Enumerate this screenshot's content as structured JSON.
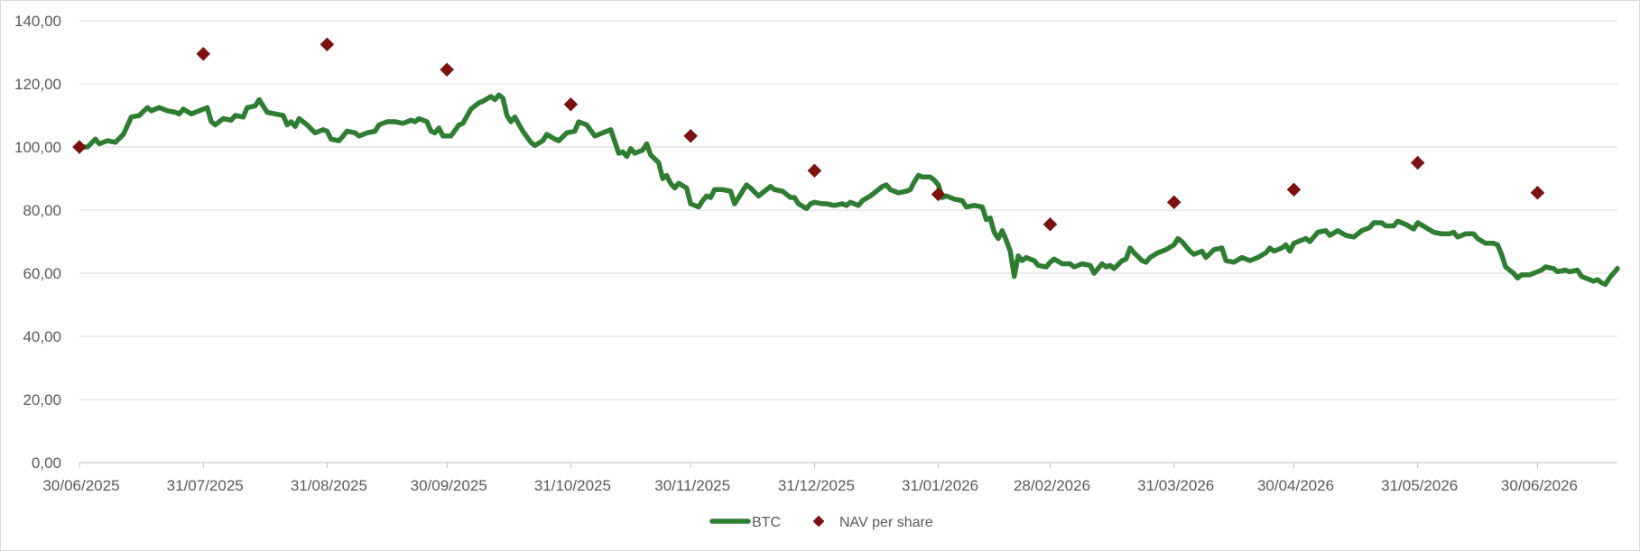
{
  "chart_data": {
    "type": "line",
    "title": "",
    "xlabel": "",
    "ylabel": "",
    "ylim": [
      0,
      140
    ],
    "y_ticks": [
      "0,00",
      "20,00",
      "40,00",
      "60,00",
      "80,00",
      "100,00",
      "120,00",
      "140,00"
    ],
    "y_tick_values": [
      0,
      20,
      40,
      60,
      80,
      100,
      120,
      140
    ],
    "x_range": [
      "2025-06-30",
      "2026-07-20"
    ],
    "x_ticks": [
      "30/06/2025",
      "31/07/2025",
      "31/08/2025",
      "30/09/2025",
      "31/10/2025",
      "30/11/2025",
      "31/12/2025",
      "31/01/2026",
      "28/02/2026",
      "31/03/2026",
      "30/04/2026",
      "31/05/2026",
      "30/06/2026"
    ],
    "x_tick_dates": [
      "2025-06-30",
      "2025-07-31",
      "2025-08-31",
      "2025-09-30",
      "2025-10-31",
      "2025-11-30",
      "2025-12-31",
      "2026-01-31",
      "2026-02-28",
      "2026-03-31",
      "2026-04-30",
      "2026-05-31",
      "2026-06-30"
    ],
    "grid": true,
    "legend_position": "bottom-center",
    "series": [
      {
        "name": "BTC",
        "kind": "line",
        "color": "#2e7d32",
        "points": [
          [
            "2025-06-30",
            100
          ],
          [
            "2025-07-02",
            100
          ],
          [
            "2025-07-04",
            102.5
          ],
          [
            "2025-07-05",
            101
          ],
          [
            "2025-07-07",
            102
          ],
          [
            "2025-07-09",
            101.5
          ],
          [
            "2025-07-11",
            104
          ],
          [
            "2025-07-13",
            109.5
          ],
          [
            "2025-07-15",
            110
          ],
          [
            "2025-07-17",
            112.5
          ],
          [
            "2025-07-18",
            111.5
          ],
          [
            "2025-07-20",
            112.5
          ],
          [
            "2025-07-22",
            111.5
          ],
          [
            "2025-07-24",
            111
          ],
          [
            "2025-07-25",
            110.5
          ],
          [
            "2025-07-26",
            112
          ],
          [
            "2025-07-28",
            110.5
          ],
          [
            "2025-07-30",
            111.5
          ],
          [
            "2025-08-01",
            112.5
          ],
          [
            "2025-08-02",
            108
          ],
          [
            "2025-08-03",
            107
          ],
          [
            "2025-08-05",
            109
          ],
          [
            "2025-08-07",
            108.5
          ],
          [
            "2025-08-08",
            110
          ],
          [
            "2025-08-10",
            109.5
          ],
          [
            "2025-08-11",
            112.5
          ],
          [
            "2025-08-13",
            113
          ],
          [
            "2025-08-14",
            115
          ],
          [
            "2025-08-16",
            111
          ],
          [
            "2025-08-18",
            110.5
          ],
          [
            "2025-08-20",
            110
          ],
          [
            "2025-08-21",
            107
          ],
          [
            "2025-08-22",
            108
          ],
          [
            "2025-08-23",
            106.5
          ],
          [
            "2025-08-24",
            109
          ],
          [
            "2025-08-26",
            107
          ],
          [
            "2025-08-28",
            104.5
          ],
          [
            "2025-08-30",
            105.5
          ],
          [
            "2025-08-31",
            105
          ],
          [
            "2025-09-01",
            102.5
          ],
          [
            "2025-09-03",
            102
          ],
          [
            "2025-09-05",
            105
          ],
          [
            "2025-09-07",
            104.5
          ],
          [
            "2025-09-08",
            103.5
          ],
          [
            "2025-09-10",
            104.5
          ],
          [
            "2025-09-12",
            105
          ],
          [
            "2025-09-13",
            107
          ],
          [
            "2025-09-15",
            108
          ],
          [
            "2025-09-17",
            108
          ],
          [
            "2025-09-19",
            107.5
          ],
          [
            "2025-09-21",
            108.5
          ],
          [
            "2025-09-22",
            108
          ],
          [
            "2025-09-23",
            109
          ],
          [
            "2025-09-25",
            108
          ],
          [
            "2025-09-26",
            105
          ],
          [
            "2025-09-27",
            104.5
          ],
          [
            "2025-09-28",
            106
          ],
          [
            "2025-09-29",
            103.5
          ],
          [
            "2025-10-01",
            103.5
          ],
          [
            "2025-10-03",
            107
          ],
          [
            "2025-10-04",
            107.5
          ],
          [
            "2025-10-06",
            112
          ],
          [
            "2025-10-08",
            114
          ],
          [
            "2025-10-09",
            114.5
          ],
          [
            "2025-10-11",
            116
          ],
          [
            "2025-10-12",
            115
          ],
          [
            "2025-10-13",
            116.5
          ],
          [
            "2025-10-14",
            115.5
          ],
          [
            "2025-10-15",
            110
          ],
          [
            "2025-10-16",
            108
          ],
          [
            "2025-10-17",
            109.5
          ],
          [
            "2025-10-19",
            105
          ],
          [
            "2025-10-21",
            101.5
          ],
          [
            "2025-10-22",
            100.5
          ],
          [
            "2025-10-24",
            102
          ],
          [
            "2025-10-25",
            104
          ],
          [
            "2025-10-27",
            102.5
          ],
          [
            "2025-10-28",
            102
          ],
          [
            "2025-10-30",
            104.5
          ],
          [
            "2025-11-01",
            105
          ],
          [
            "2025-11-02",
            108
          ],
          [
            "2025-11-04",
            107
          ],
          [
            "2025-11-06",
            103.5
          ],
          [
            "2025-11-08",
            104.5
          ],
          [
            "2025-11-10",
            105.5
          ],
          [
            "2025-11-12",
            98
          ],
          [
            "2025-11-13",
            98.5
          ],
          [
            "2025-11-14",
            97
          ],
          [
            "2025-11-15",
            99.5
          ],
          [
            "2025-11-16",
            98
          ],
          [
            "2025-11-18",
            99
          ],
          [
            "2025-11-19",
            101
          ],
          [
            "2025-11-20",
            97.5
          ],
          [
            "2025-11-22",
            95
          ],
          [
            "2025-11-23",
            90
          ],
          [
            "2025-11-24",
            91
          ],
          [
            "2025-11-25",
            88.5
          ],
          [
            "2025-11-26",
            87
          ],
          [
            "2025-11-27",
            88.5
          ],
          [
            "2025-11-29",
            87
          ],
          [
            "2025-11-30",
            82
          ],
          [
            "2025-12-02",
            81
          ],
          [
            "2025-12-03",
            83
          ],
          [
            "2025-12-04",
            84.5
          ],
          [
            "2025-12-05",
            84
          ],
          [
            "2025-12-06",
            86.5
          ],
          [
            "2025-12-08",
            86.5
          ],
          [
            "2025-12-10",
            86
          ],
          [
            "2025-12-11",
            82
          ],
          [
            "2025-12-12",
            84
          ],
          [
            "2025-12-14",
            88
          ],
          [
            "2025-12-15",
            87
          ],
          [
            "2025-12-17",
            84.5
          ],
          [
            "2025-12-18",
            85.5
          ],
          [
            "2025-12-20",
            87.5
          ],
          [
            "2025-12-21",
            86.5
          ],
          [
            "2025-12-23",
            86
          ],
          [
            "2025-12-25",
            84
          ],
          [
            "2025-12-26",
            84
          ],
          [
            "2025-12-27",
            82
          ],
          [
            "2025-12-29",
            80.5
          ],
          [
            "2025-12-30",
            82
          ],
          [
            "2025-12-31",
            82.5
          ],
          [
            "2026-01-02",
            82
          ],
          [
            "2026-01-03",
            82
          ],
          [
            "2026-01-05",
            81.5
          ],
          [
            "2026-01-07",
            82
          ],
          [
            "2026-01-08",
            81.5
          ],
          [
            "2026-01-09",
            82.5
          ],
          [
            "2026-01-11",
            81.5
          ],
          [
            "2026-01-12",
            83
          ],
          [
            "2026-01-14",
            84.5
          ],
          [
            "2026-01-15",
            85.5
          ],
          [
            "2026-01-17",
            87.5
          ],
          [
            "2026-01-18",
            88
          ],
          [
            "2026-01-19",
            86.5
          ],
          [
            "2026-01-21",
            85.5
          ],
          [
            "2026-01-23",
            86
          ],
          [
            "2026-01-24",
            86.5
          ],
          [
            "2026-01-25",
            89
          ],
          [
            "2026-01-26",
            91
          ],
          [
            "2026-01-27",
            90.5
          ],
          [
            "2026-01-29",
            90.5
          ],
          [
            "2026-01-30",
            89.5
          ],
          [
            "2026-01-31",
            88
          ],
          [
            "2026-02-01",
            84
          ],
          [
            "2026-02-02",
            84.5
          ],
          [
            "2026-02-04",
            83.5
          ],
          [
            "2026-02-06",
            83
          ],
          [
            "2026-02-07",
            81
          ],
          [
            "2026-02-09",
            81.5
          ],
          [
            "2026-02-11",
            81
          ],
          [
            "2026-02-12",
            77
          ],
          [
            "2026-02-13",
            77.5
          ],
          [
            "2026-02-14",
            73
          ],
          [
            "2026-02-15",
            71
          ],
          [
            "2026-02-16",
            73.5
          ],
          [
            "2026-02-17",
            70.5
          ],
          [
            "2026-02-18",
            67
          ],
          [
            "2026-02-19",
            59
          ],
          [
            "2026-02-20",
            65.5
          ],
          [
            "2026-02-21",
            64
          ],
          [
            "2026-02-22",
            65
          ],
          [
            "2026-02-24",
            64
          ],
          [
            "2026-02-25",
            62.5
          ],
          [
            "2026-02-27",
            62
          ],
          [
            "2026-02-28",
            63.5
          ],
          [
            "2026-03-01",
            64.5
          ],
          [
            "2026-03-03",
            63
          ],
          [
            "2026-03-05",
            63
          ],
          [
            "2026-03-06",
            62
          ],
          [
            "2026-03-08",
            63
          ],
          [
            "2026-03-10",
            62.5
          ],
          [
            "2026-03-11",
            60
          ],
          [
            "2026-03-13",
            63
          ],
          [
            "2026-03-14",
            62
          ],
          [
            "2026-03-15",
            62.5
          ],
          [
            "2026-03-16",
            61.5
          ],
          [
            "2026-03-18",
            64
          ],
          [
            "2026-03-19",
            64.5
          ],
          [
            "2026-03-20",
            68
          ],
          [
            "2026-03-21",
            66.5
          ],
          [
            "2026-03-23",
            64
          ],
          [
            "2026-03-24",
            63.5
          ],
          [
            "2026-03-25",
            65
          ],
          [
            "2026-03-27",
            66.5
          ],
          [
            "2026-03-29",
            67.5
          ],
          [
            "2026-03-31",
            69
          ],
          [
            "2026-04-01",
            71
          ],
          [
            "2026-04-02",
            70
          ],
          [
            "2026-04-04",
            67
          ],
          [
            "2026-04-05",
            66
          ],
          [
            "2026-04-07",
            67
          ],
          [
            "2026-04-08",
            65
          ],
          [
            "2026-04-10",
            67.5
          ],
          [
            "2026-04-12",
            68
          ],
          [
            "2026-04-13",
            64
          ],
          [
            "2026-04-15",
            63.5
          ],
          [
            "2026-04-17",
            65
          ],
          [
            "2026-04-19",
            64
          ],
          [
            "2026-04-21",
            65
          ],
          [
            "2026-04-23",
            66.5
          ],
          [
            "2026-04-24",
            68
          ],
          [
            "2026-04-25",
            67
          ],
          [
            "2026-04-27",
            68
          ],
          [
            "2026-04-28",
            69
          ],
          [
            "2026-04-29",
            67
          ],
          [
            "2026-04-30",
            69.5
          ],
          [
            "2026-05-01",
            70
          ],
          [
            "2026-05-03",
            71
          ],
          [
            "2026-05-04",
            70
          ],
          [
            "2026-05-06",
            73
          ],
          [
            "2026-05-08",
            73.5
          ],
          [
            "2026-05-09",
            72
          ],
          [
            "2026-05-11",
            73.5
          ],
          [
            "2026-05-13",
            72
          ],
          [
            "2026-05-15",
            71.5
          ],
          [
            "2026-05-17",
            73.5
          ],
          [
            "2026-05-19",
            74.5
          ],
          [
            "2026-05-20",
            76
          ],
          [
            "2026-05-22",
            76
          ],
          [
            "2026-05-23",
            75
          ],
          [
            "2026-05-25",
            75
          ],
          [
            "2026-05-26",
            76.5
          ],
          [
            "2026-05-28",
            75.5
          ],
          [
            "2026-05-30",
            74
          ],
          [
            "2026-05-31",
            76
          ],
          [
            "2026-06-02",
            74.5
          ],
          [
            "2026-06-04",
            73
          ],
          [
            "2026-06-06",
            72.5
          ],
          [
            "2026-06-08",
            72.5
          ],
          [
            "2026-06-09",
            73
          ],
          [
            "2026-06-10",
            71.5
          ],
          [
            "2026-06-12",
            72.5
          ],
          [
            "2026-06-14",
            72.5
          ],
          [
            "2026-06-15",
            71
          ],
          [
            "2026-06-17",
            69.5
          ],
          [
            "2026-06-19",
            69.5
          ],
          [
            "2026-06-20",
            69
          ],
          [
            "2026-06-21",
            66
          ],
          [
            "2026-06-22",
            62
          ],
          [
            "2026-06-24",
            60
          ],
          [
            "2026-06-25",
            58.5
          ],
          [
            "2026-06-26",
            59.5
          ],
          [
            "2026-06-28",
            59.5
          ],
          [
            "2026-06-29",
            60
          ],
          [
            "2026-07-01",
            61
          ],
          [
            "2026-07-02",
            62
          ],
          [
            "2026-07-04",
            61.5
          ],
          [
            "2026-07-05",
            60.5
          ],
          [
            "2026-07-07",
            61
          ],
          [
            "2026-07-08",
            60.5
          ],
          [
            "2026-07-10",
            61
          ],
          [
            "2026-07-11",
            59
          ],
          [
            "2026-07-13",
            58
          ],
          [
            "2026-07-14",
            57.5
          ],
          [
            "2026-07-15",
            58
          ],
          [
            "2026-07-16",
            57
          ],
          [
            "2026-07-17",
            56.5
          ],
          [
            "2026-07-18",
            58.5
          ],
          [
            "2026-07-19",
            60
          ],
          [
            "2026-07-20",
            61.5
          ]
        ]
      },
      {
        "name": "NAV per share",
        "kind": "marker",
        "marker": "diamond",
        "color": "#7b1111",
        "points": [
          [
            "2025-06-30",
            100
          ],
          [
            "2025-07-31",
            129.5
          ],
          [
            "2025-08-31",
            132.5
          ],
          [
            "2025-09-30",
            124.5
          ],
          [
            "2025-10-31",
            113.5
          ],
          [
            "2025-11-30",
            103.5
          ],
          [
            "2025-12-31",
            92.5
          ],
          [
            "2026-01-31",
            85
          ],
          [
            "2026-02-28",
            75.5
          ],
          [
            "2026-03-31",
            82.5
          ],
          [
            "2026-04-30",
            86.5
          ],
          [
            "2026-05-31",
            95
          ],
          [
            "2026-06-30",
            85.5
          ]
        ]
      }
    ]
  }
}
